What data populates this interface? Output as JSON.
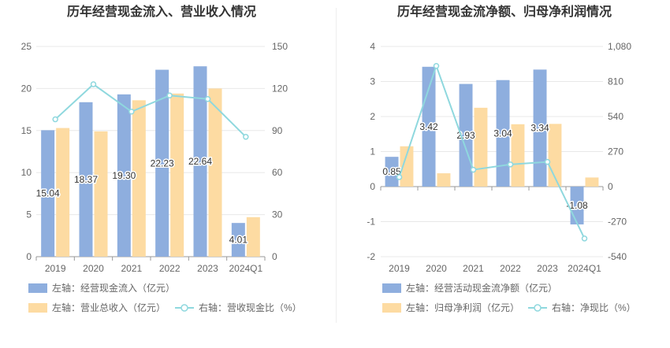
{
  "chart_data": [
    {
      "type": "bar",
      "title": "历年经营现金流入、营业收入情况",
      "categories": [
        "2019",
        "2020",
        "2021",
        "2022",
        "2023",
        "2024Q1"
      ],
      "y_left": {
        "min": 0,
        "max": 25,
        "ticks": [
          "0",
          "5",
          "10",
          "15",
          "20",
          "25"
        ]
      },
      "y_right": {
        "min": 0,
        "max": 150,
        "ticks": [
          "0",
          "30",
          "60",
          "90",
          "120",
          "150"
        ]
      },
      "series": [
        {
          "name": "左轴：经营现金流入（亿元）",
          "kind": "bar",
          "axis": "left",
          "color": "#8eaede",
          "values": [
            15.04,
            18.37,
            19.3,
            22.23,
            22.64,
            4.01
          ],
          "labels": [
            "15.04",
            "18.37",
            "19.30",
            "22.23",
            "22.64",
            "4.01"
          ]
        },
        {
          "name": "左轴：营业总收入（亿元）",
          "kind": "bar",
          "axis": "left",
          "color": "#fddba2",
          "values": [
            15.3,
            14.9,
            18.6,
            19.4,
            20.0,
            4.7
          ]
        },
        {
          "name": "右轴：营收现金比（%）",
          "kind": "line",
          "axis": "right",
          "color": "#8fd8de",
          "values": [
            98.0,
            123.0,
            103.5,
            115.0,
            112.5,
            85.5
          ]
        }
      ],
      "legend_rows": [
        [
          0
        ],
        [
          1,
          2
        ]
      ]
    },
    {
      "type": "bar",
      "title": "历年经营现金流净额、归母净利润情况",
      "categories": [
        "2019",
        "2020",
        "2021",
        "2022",
        "2023",
        "2024Q1"
      ],
      "y_left": {
        "min": -2,
        "max": 4,
        "ticks": [
          "-2",
          "-1",
          "0",
          "1",
          "2",
          "3",
          "4"
        ]
      },
      "y_right": {
        "min": -540,
        "max": 1080,
        "ticks": [
          "-540",
          "-270",
          "0",
          "270",
          "540",
          "810",
          "1,080"
        ]
      },
      "series": [
        {
          "name": "左轴：经营活动现金流净额（亿元）",
          "kind": "bar",
          "axis": "left",
          "color": "#8eaede",
          "values": [
            0.85,
            3.42,
            2.93,
            3.04,
            3.34,
            -1.08
          ],
          "labels": [
            "0.85",
            "3.42",
            "2.93",
            "3.04",
            "3.34",
            "-1.08"
          ]
        },
        {
          "name": "左轴：归母净利润（亿元）",
          "kind": "bar",
          "axis": "left",
          "color": "#fddba2",
          "values": [
            1.15,
            0.38,
            2.25,
            1.78,
            1.79,
            0.26
          ]
        },
        {
          "name": "右轴：净现比（%）",
          "kind": "line",
          "axis": "right",
          "color": "#8fd8de",
          "values": [
            73,
            930,
            130,
            171,
            190,
            -400
          ]
        }
      ],
      "legend_rows": [
        [
          0
        ],
        [
          1,
          2
        ]
      ]
    }
  ]
}
